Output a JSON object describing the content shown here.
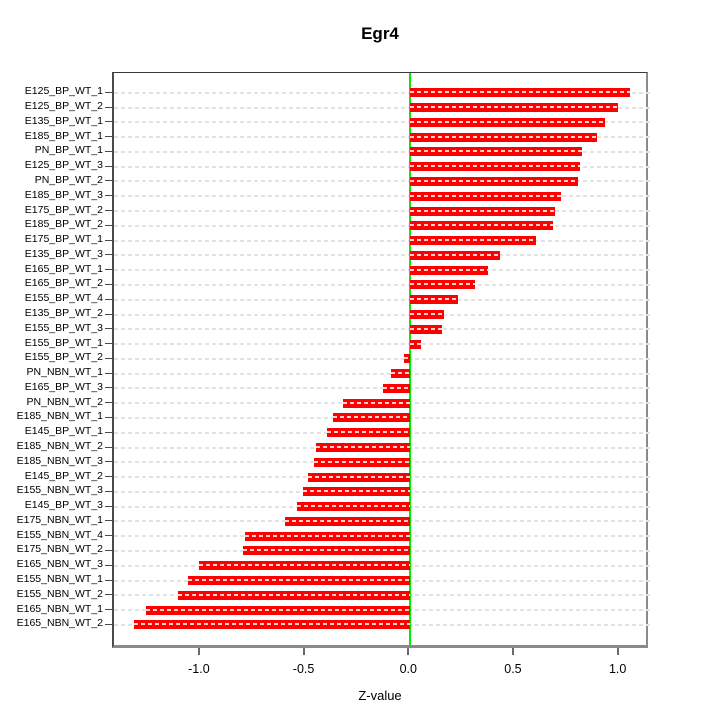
{
  "title": "Egr4",
  "xlabel": "Z-value",
  "colors": {
    "bar": "#ff0000",
    "bar_inner_dash": "rgba(255,255,255,0.82)",
    "zero_line": "#00ee00",
    "gridline": "#e2e2e2",
    "axis": "#4a4a4a",
    "text": "#000000",
    "background": "#ffffff"
  },
  "chart_data": {
    "type": "bar",
    "orientation": "horizontal",
    "title": "Egr4",
    "xlabel": "Z-value",
    "ylabel": "",
    "grid": "horizontal dashed gridline per bar row",
    "zero_reference_line": 0,
    "xlim": [
      -1.415,
      1.145
    ],
    "x_tick_values": [
      -1.0,
      -0.5,
      0.0,
      0.5,
      1.0
    ],
    "x_tick_labels": [
      "-1.0",
      "-0.5",
      "0.0",
      "0.5",
      "1.0"
    ],
    "categories": [
      "E125_BP_WT_1",
      "E125_BP_WT_2",
      "E135_BP_WT_1",
      "E185_BP_WT_1",
      "PN_BP_WT_1",
      "E125_BP_WT_3",
      "PN_BP_WT_2",
      "E185_BP_WT_3",
      "E175_BP_WT_2",
      "E185_BP_WT_2",
      "E175_BP_WT_1",
      "E135_BP_WT_3",
      "E165_BP_WT_1",
      "E165_BP_WT_2",
      "E155_BP_WT_4",
      "E135_BP_WT_2",
      "E155_BP_WT_3",
      "E155_BP_WT_1",
      "E155_BP_WT_2",
      "PN_NBN_WT_1",
      "E165_BP_WT_3",
      "PN_NBN_WT_2",
      "E185_NBN_WT_1",
      "E145_BP_WT_1",
      "E185_NBN_WT_2",
      "E185_NBN_WT_3",
      "E145_BP_WT_2",
      "E155_NBN_WT_3",
      "E145_BP_WT_3",
      "E175_NBN_WT_1",
      "E155_NBN_WT_4",
      "E175_NBN_WT_2",
      "E165_NBN_WT_3",
      "E155_NBN_WT_1",
      "E155_NBN_WT_2",
      "E165_NBN_WT_1",
      "E165_NBN_WT_2"
    ],
    "values": [
      1.05,
      0.99,
      0.93,
      0.89,
      0.82,
      0.81,
      0.8,
      0.72,
      0.69,
      0.68,
      0.6,
      0.43,
      0.37,
      0.31,
      0.23,
      0.16,
      0.15,
      0.05,
      -0.03,
      -0.09,
      -0.13,
      -0.32,
      -0.37,
      -0.4,
      -0.45,
      -0.46,
      -0.49,
      -0.51,
      -0.54,
      -0.6,
      -0.79,
      -0.8,
      -1.01,
      -1.06,
      -1.11,
      -1.26,
      -1.32
    ]
  }
}
